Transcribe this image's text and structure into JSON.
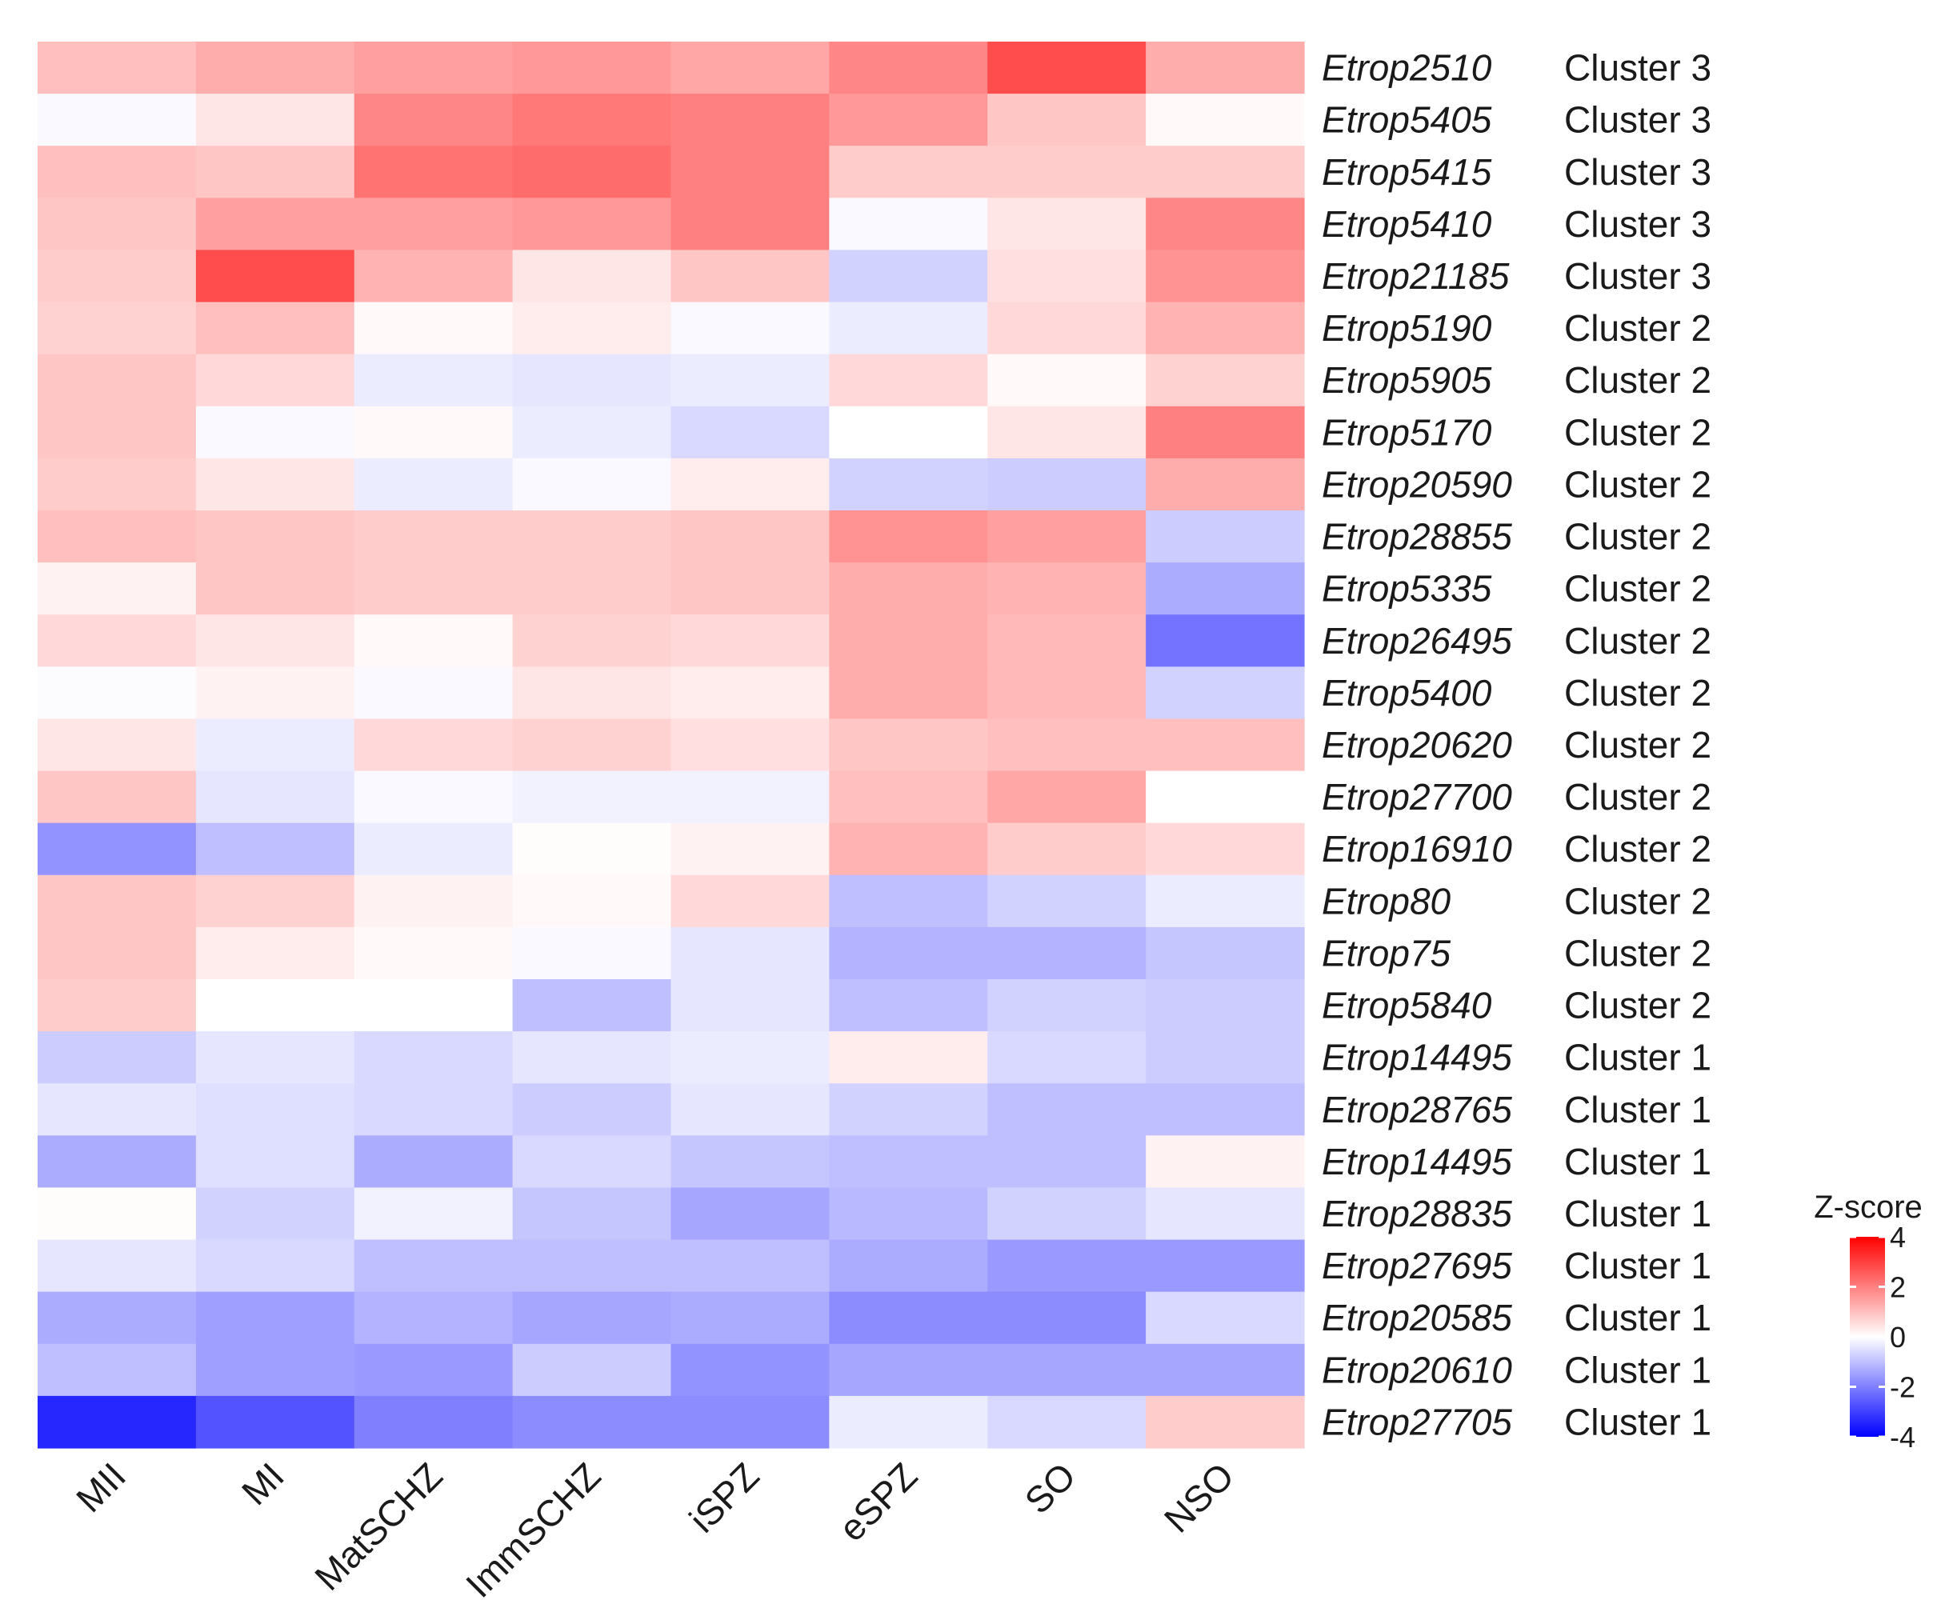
{
  "chart_data": {
    "type": "heatmap",
    "title": "",
    "columns": [
      "MII",
      "MI",
      "MatSCHZ",
      "ImmSCHZ",
      "iSPZ",
      "eSPZ",
      "SO",
      "NSO"
    ],
    "rows": [
      {
        "gene": "Etrop2510",
        "cluster": "Cluster 3",
        "values": [
          1.0,
          1.3,
          1.5,
          1.6,
          1.4,
          1.9,
          2.8,
          1.3
        ]
      },
      {
        "gene": "Etrop5405",
        "cluster": "Cluster 3",
        "values": [
          -0.1,
          0.4,
          1.9,
          2.1,
          2.0,
          1.6,
          0.9,
          0.1
        ]
      },
      {
        "gene": "Etrop5415",
        "cluster": "Cluster 3",
        "values": [
          1.0,
          0.9,
          2.2,
          2.3,
          2.0,
          0.8,
          0.8,
          0.8
        ]
      },
      {
        "gene": "Etrop5410",
        "cluster": "Cluster 3",
        "values": [
          0.9,
          1.5,
          1.5,
          1.6,
          2.0,
          -0.1,
          0.4,
          1.9
        ]
      },
      {
        "gene": "Etrop21185",
        "cluster": "Cluster 3",
        "values": [
          0.8,
          2.8,
          1.2,
          0.4,
          0.9,
          -0.7,
          0.5,
          1.7
        ]
      },
      {
        "gene": "Etrop5190",
        "cluster": "Cluster 2",
        "values": [
          0.7,
          1.0,
          0.1,
          0.3,
          -0.1,
          -0.3,
          0.6,
          1.2
        ]
      },
      {
        "gene": "Etrop5905",
        "cluster": "Cluster 2",
        "values": [
          0.9,
          0.6,
          -0.3,
          -0.4,
          -0.3,
          0.6,
          0.1,
          0.7
        ]
      },
      {
        "gene": "Etrop5170",
        "cluster": "Cluster 2",
        "values": [
          0.9,
          -0.1,
          0.1,
          -0.3,
          -0.6,
          0.0,
          0.4,
          2.0
        ]
      },
      {
        "gene": "Etrop20590",
        "cluster": "Cluster 2",
        "values": [
          0.8,
          0.4,
          -0.3,
          -0.1,
          0.3,
          -0.7,
          -0.8,
          1.3
        ]
      },
      {
        "gene": "Etrop28855",
        "cluster": "Cluster 2",
        "values": [
          1.0,
          0.9,
          0.8,
          0.8,
          0.9,
          1.7,
          1.5,
          -0.8
        ]
      },
      {
        "gene": "Etrop5335",
        "cluster": "Cluster 2",
        "values": [
          0.2,
          0.9,
          0.8,
          0.8,
          0.9,
          1.3,
          1.2,
          -1.3
        ]
      },
      {
        "gene": "Etrop26495",
        "cluster": "Cluster 2",
        "values": [
          0.6,
          0.4,
          0.1,
          0.7,
          0.6,
          1.3,
          1.1,
          -2.2
        ]
      },
      {
        "gene": "Etrop5400",
        "cluster": "Cluster 2",
        "values": [
          -0.05,
          0.2,
          -0.1,
          0.4,
          0.3,
          1.3,
          1.1,
          -0.7
        ]
      },
      {
        "gene": "Etrop20620",
        "cluster": "Cluster 2",
        "values": [
          0.4,
          -0.3,
          0.6,
          0.7,
          0.5,
          0.9,
          1.0,
          1.0
        ]
      },
      {
        "gene": "Etrop27700",
        "cluster": "Cluster 2",
        "values": [
          0.9,
          -0.4,
          -0.1,
          -0.2,
          -0.2,
          1.0,
          1.4,
          0.0
        ]
      },
      {
        "gene": "Etrop16910",
        "cluster": "Cluster 2",
        "values": [
          -1.7,
          -1.0,
          -0.3,
          0.05,
          0.2,
          1.2,
          0.8,
          0.6
        ]
      },
      {
        "gene": "Etrop80",
        "cluster": "Cluster 2",
        "values": [
          0.9,
          0.7,
          0.2,
          0.1,
          0.6,
          -1.0,
          -0.7,
          -0.3
        ]
      },
      {
        "gene": "Etrop75",
        "cluster": "Cluster 2",
        "values": [
          0.9,
          0.3,
          0.1,
          -0.1,
          -0.4,
          -1.2,
          -1.2,
          -0.9
        ]
      },
      {
        "gene": "Etrop5840",
        "cluster": "Cluster 2",
        "values": [
          0.8,
          0.0,
          0.0,
          -1.0,
          -0.4,
          -1.0,
          -0.7,
          -0.8
        ]
      },
      {
        "gene": "Etrop14495",
        "cluster": "Cluster 1",
        "values": [
          -0.8,
          -0.4,
          -0.6,
          -0.4,
          -0.3,
          0.3,
          -0.6,
          -0.8
        ]
      },
      {
        "gene": "Etrop28765",
        "cluster": "Cluster 1",
        "values": [
          -0.4,
          -0.5,
          -0.6,
          -0.8,
          -0.4,
          -0.7,
          -1.0,
          -1.0
        ]
      },
      {
        "gene": "Etrop14495",
        "cluster": "Cluster 1",
        "values": [
          -1.3,
          -0.5,
          -1.3,
          -0.6,
          -0.9,
          -1.0,
          -1.0,
          0.2
        ]
      },
      {
        "gene": "Etrop28835",
        "cluster": "Cluster 1",
        "values": [
          0.05,
          -0.7,
          -0.2,
          -0.9,
          -1.4,
          -1.1,
          -0.7,
          -0.4
        ]
      },
      {
        "gene": "Etrop27695",
        "cluster": "Cluster 1",
        "values": [
          -0.4,
          -0.6,
          -1.0,
          -1.0,
          -1.0,
          -1.3,
          -1.6,
          -1.6
        ]
      },
      {
        "gene": "Etrop20585",
        "cluster": "Cluster 1",
        "values": [
          -1.3,
          -1.5,
          -1.2,
          -1.4,
          -1.3,
          -1.8,
          -1.8,
          -0.6
        ]
      },
      {
        "gene": "Etrop20610",
        "cluster": "Cluster 1",
        "values": [
          -1.0,
          -1.5,
          -1.6,
          -0.8,
          -1.7,
          -1.4,
          -1.4,
          -1.4
        ]
      },
      {
        "gene": "Etrop27705",
        "cluster": "Cluster 1",
        "values": [
          -3.4,
          -2.7,
          -2.0,
          -1.8,
          -1.8,
          -0.3,
          -0.6,
          0.8
        ]
      }
    ],
    "legend": {
      "title": "Z-score",
      "range": [
        -4,
        4
      ],
      "ticks": [
        4,
        2,
        0,
        -2,
        -4
      ],
      "tick_labels": [
        "4",
        "2",
        "0",
        "-2",
        "-4"
      ],
      "colors": {
        "low": "#0000ff",
        "mid": "#ffffff",
        "high": "#ff0000"
      }
    }
  }
}
